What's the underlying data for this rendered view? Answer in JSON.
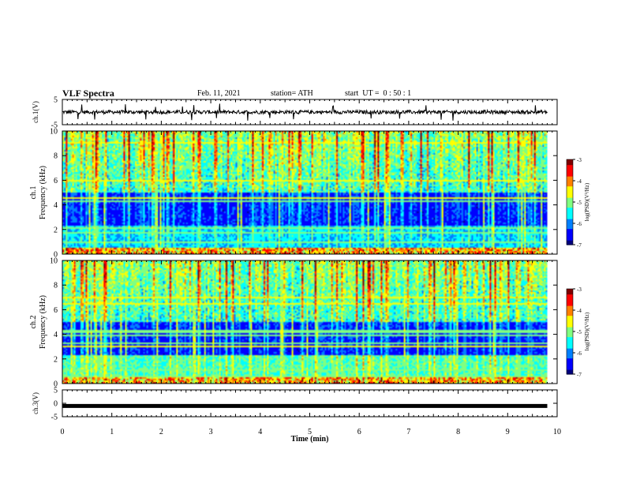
{
  "header": {
    "title": "VLF Spectra",
    "date": "Feb. 11, 2021",
    "station": "station= ATH",
    "start": "start  UT =  0 : 50 : 1"
  },
  "colors": {
    "colormap": [
      "#00007f",
      "#0000ff",
      "#0080ff",
      "#00ffff",
      "#80ff80",
      "#ffff00",
      "#ff8000",
      "#ff0000",
      "#7f0000"
    ],
    "trace": "#000000",
    "frame": "#000000"
  },
  "chart_data": [
    {
      "type": "line",
      "panel": "ch1-waveform",
      "ylabel": "ch.1(V)",
      "ylim": [
        -5,
        5
      ],
      "yticks": [
        "5",
        "-5"
      ],
      "xlim": [
        0,
        10
      ],
      "baseline_value": 0,
      "noise_amplitude": 0.9,
      "data_end": 9.8
    },
    {
      "type": "heatmap",
      "panel": "ch1-spectrogram",
      "ylabel_top": "ch.1",
      "ylabel": "Frequency (kHz)",
      "ylim": [
        0,
        10
      ],
      "yticks": [
        "0",
        "2",
        "4",
        "6",
        "8",
        "10"
      ],
      "xlim": [
        0,
        10
      ],
      "data_end": 9.8,
      "colorbar": {
        "label": "log(PSD)(V²/Hz)",
        "range": [
          -7,
          -3
        ],
        "ticks": [
          "-3",
          "-4",
          "-5",
          "-6",
          "-7"
        ]
      }
    },
    {
      "type": "heatmap",
      "panel": "ch2-spectrogram",
      "ylabel_top": "ch.2",
      "ylabel": "Frequency (kHz)",
      "ylim": [
        0,
        10
      ],
      "yticks": [
        "0",
        "2",
        "4",
        "6",
        "8",
        "10"
      ],
      "xlim": [
        0,
        10
      ],
      "data_end": 9.8,
      "colorbar": {
        "label": "log(PSD)(V²/Hz)",
        "range": [
          -7,
          -3
        ],
        "ticks": [
          "-3",
          "-4",
          "-5",
          "-6",
          "-7"
        ]
      }
    },
    {
      "type": "line",
      "panel": "ch3-waveform",
      "ylabel": "ch.3(V)",
      "ylim": [
        -5,
        5
      ],
      "yticks": [
        "5",
        "0",
        "-5"
      ],
      "xlim": [
        0,
        10
      ],
      "baseline_value": -1.0,
      "noise_amplitude": 0.0,
      "data_end": 9.8
    }
  ],
  "xaxis": {
    "label": "Time  (min)",
    "ticks": [
      "0",
      "1",
      "2",
      "3",
      "4",
      "5",
      "6",
      "7",
      "8",
      "9",
      "10"
    ]
  }
}
